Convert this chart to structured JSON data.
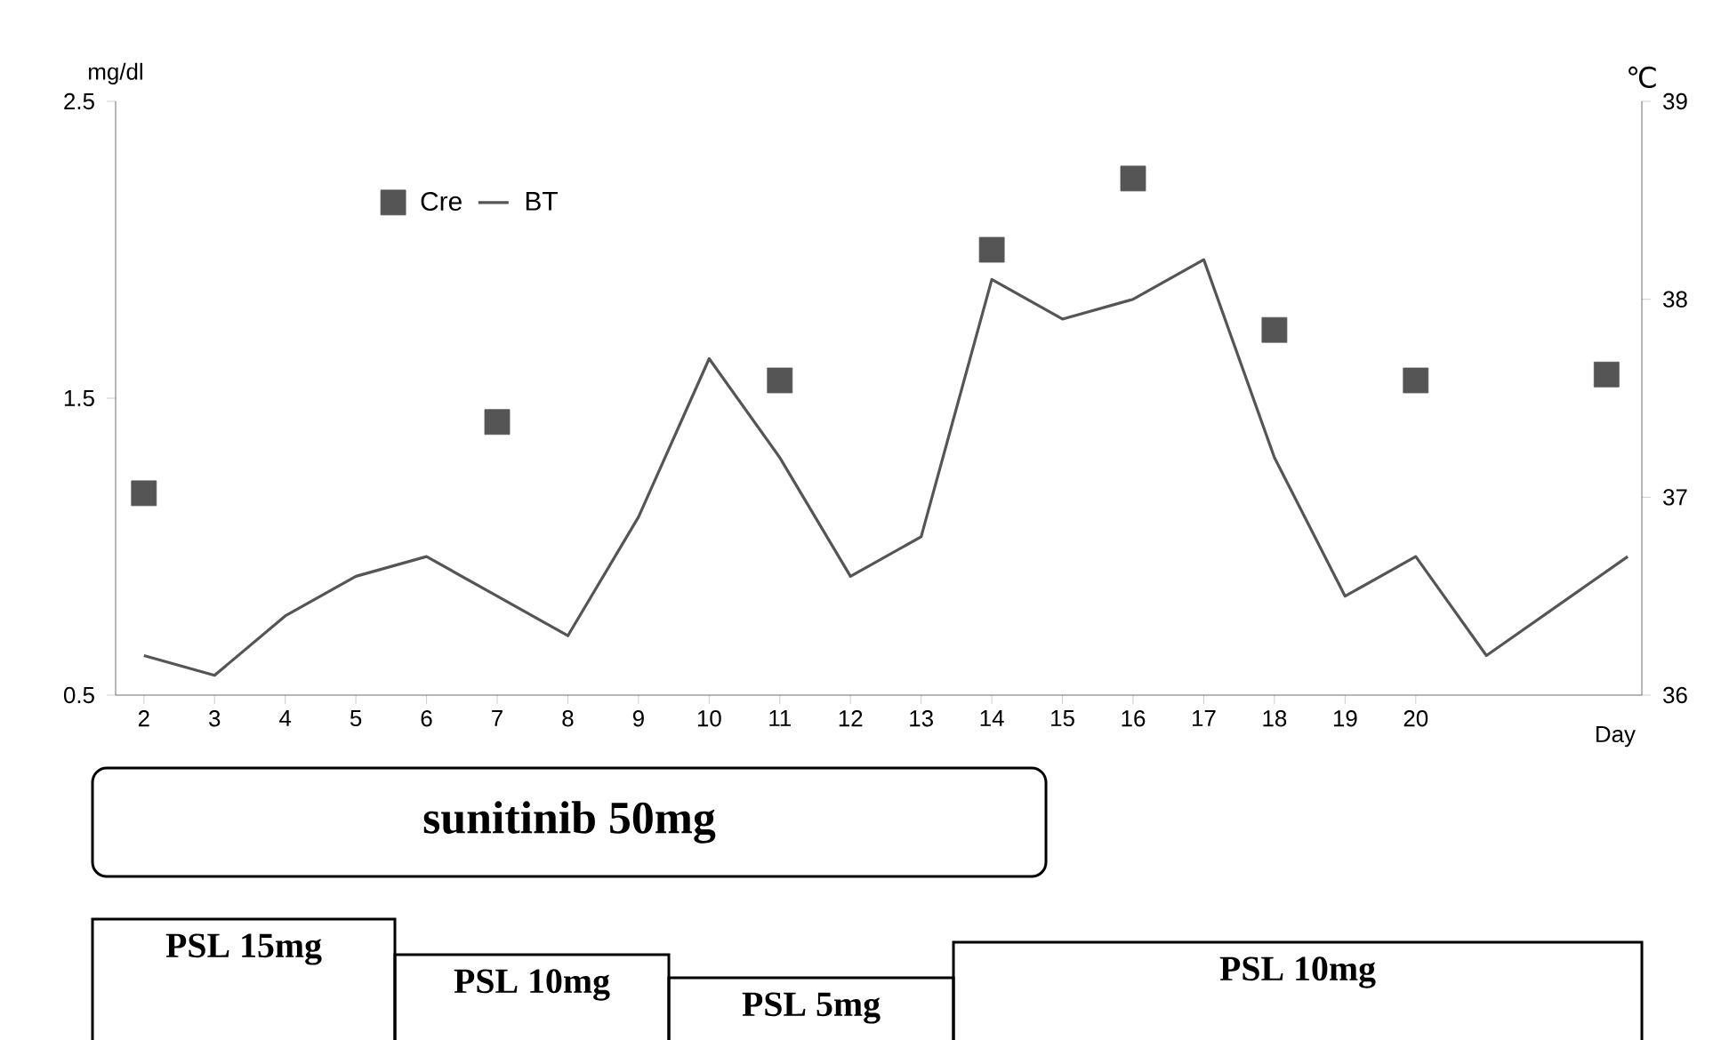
{
  "chart_data": {
    "type": "line",
    "xlabel": "Day",
    "ylabel": "mg/dl",
    "y2label": "℃",
    "x": [
      2,
      3,
      4,
      5,
      6,
      7,
      8,
      9,
      10,
      11,
      12,
      13,
      14,
      15,
      16,
      17,
      18,
      19,
      20,
      21,
      23
    ],
    "xlim": [
      1.6,
      23.2
    ],
    "xticks": [
      2,
      3,
      4,
      5,
      6,
      7,
      8,
      9,
      10,
      11,
      12,
      13,
      14,
      15,
      16,
      17,
      18,
      19,
      20
    ],
    "ylim": [
      0.5,
      2.5
    ],
    "yticks": [
      0.5,
      1.5,
      2.5
    ],
    "y2lim": [
      36,
      39
    ],
    "y2ticks": [
      36,
      37,
      38,
      39
    ],
    "series": [
      {
        "name": "Cre",
        "type": "scatter",
        "marker": "square",
        "color": "#555555",
        "x": [
          2,
          7,
          11,
          14,
          16,
          18,
          20,
          22.7
        ],
        "values": [
          1.18,
          1.42,
          1.56,
          2.0,
          2.24,
          1.73,
          1.56,
          1.58
        ]
      },
      {
        "name": "BT",
        "axis": "y2",
        "color": "#555555",
        "values": [
          36.2,
          36.1,
          36.4,
          36.6,
          36.7,
          36.5,
          36.3,
          36.9,
          37.7,
          37.2,
          36.6,
          36.8,
          38.1,
          37.9,
          38.0,
          38.2,
          37.2,
          36.5,
          36.7,
          36.2,
          36.7
        ]
      }
    ],
    "legend": "top left",
    "grid": false,
    "annotations": [
      "sunitinib 50mg",
      "PSL 15mg",
      "PSL 10mg",
      "PSL 5mg",
      "PSL 10mg"
    ]
  }
}
